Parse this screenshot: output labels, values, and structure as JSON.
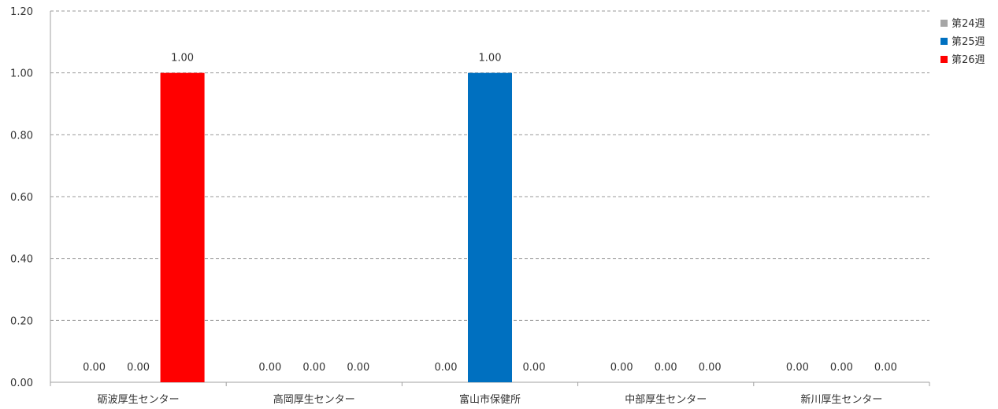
{
  "chart_data": {
    "type": "bar",
    "title": "",
    "categories": [
      "砺波厚生センター",
      "高岡厚生センター",
      "富山市保健所",
      "中部厚生センター",
      "新川厚生センター"
    ],
    "series": [
      {
        "name": "第24週",
        "color": "#a6a6a6",
        "values": [
          0.0,
          0.0,
          0.0,
          0.0,
          0.0
        ]
      },
      {
        "name": "第25週",
        "color": "#0070c0",
        "values": [
          0.0,
          0.0,
          1.0,
          0.0,
          0.0
        ]
      },
      {
        "name": "第26週",
        "color": "#ff0000",
        "values": [
          1.0,
          0.0,
          0.0,
          0.0,
          0.0
        ]
      }
    ],
    "data_labels": [
      [
        "0.00",
        "0.00",
        "1.00"
      ],
      [
        "0.00",
        "0.00",
        "0.00"
      ],
      [
        "0.00",
        "1.00",
        "0.00"
      ],
      [
        "0.00",
        "0.00",
        "0.00"
      ],
      [
        "0.00",
        "0.00",
        "0.00"
      ]
    ],
    "ylim": [
      0,
      1.2
    ],
    "yticks": [
      "0.00",
      "0.20",
      "0.40",
      "0.60",
      "0.80",
      "1.00",
      "1.20"
    ],
    "grid": true,
    "legend_position": "top-right"
  }
}
